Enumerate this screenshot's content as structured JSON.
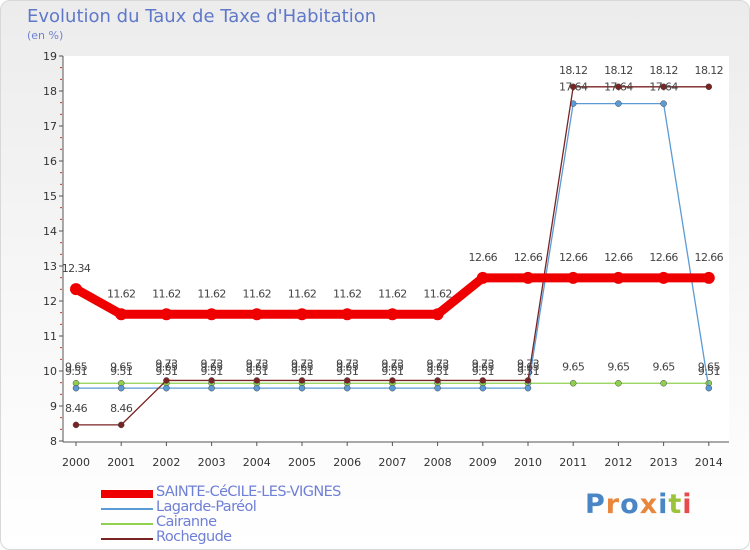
{
  "title": "Evolution du Taux de Taxe d'Habitation",
  "subtitle": "(en %)",
  "brand": {
    "text": "Proxiti",
    "colors": [
      "#4a86c5",
      "#e8863b",
      "#4a86c5",
      "#e8863b",
      "#4a86c5",
      "#9bc43b",
      "#e84b4b"
    ]
  },
  "chart_data": {
    "type": "line",
    "x": [
      "2000",
      "2001",
      "2002",
      "2003",
      "2004",
      "2005",
      "2006",
      "2007",
      "2008",
      "2009",
      "2010",
      "2011",
      "2012",
      "2013",
      "2014"
    ],
    "ylim": [
      8,
      19
    ],
    "yticks": [
      "8",
      "9",
      "10",
      "11",
      "12",
      "13",
      "14",
      "15",
      "16",
      "17",
      "18",
      "19"
    ],
    "grid": false,
    "legend_position": "bottom-left",
    "series": [
      {
        "name": "SAINTE-CéCILE-LES-VIGNES",
        "color": "#ee0000",
        "values": [
          12.34,
          11.62,
          11.62,
          11.62,
          11.62,
          11.62,
          11.62,
          11.62,
          11.62,
          12.66,
          12.66,
          12.66,
          12.66,
          12.66,
          12.66
        ],
        "labels": [
          "12.34",
          "11.62",
          "11.62",
          "11.62",
          "11.62",
          "11.62",
          "11.62",
          "11.62",
          "11.62",
          "12.66",
          "12.66",
          "12.66",
          "12.66",
          "12.66",
          "12.66"
        ]
      },
      {
        "name": "Lagarde-Paréol",
        "color": "#5b9bd5",
        "values": [
          9.51,
          9.51,
          9.51,
          9.51,
          9.51,
          9.51,
          9.51,
          9.51,
          9.51,
          9.51,
          9.51,
          17.64,
          17.64,
          17.64,
          9.51
        ],
        "labels": [
          "9.51",
          "9.51",
          "9.51",
          "9.51",
          "9.51",
          "9.51",
          "9.51",
          "9.51",
          "9.51",
          "9.51",
          "9.51",
          "17.64",
          "17.64",
          "17.64",
          "9.51"
        ]
      },
      {
        "name": "Cairanne",
        "color": "#8fd14f",
        "values": [
          9.65,
          9.65,
          9.65,
          9.65,
          9.65,
          9.65,
          9.65,
          9.65,
          9.65,
          9.65,
          9.65,
          9.65,
          9.65,
          9.65,
          9.65
        ],
        "labels": [
          "9.65",
          "9.65",
          "9.65",
          "9.65",
          "9.65",
          "9.65",
          "9.65",
          "9.65",
          "9.65",
          "9.65",
          "9.65",
          "9.65",
          "9.65",
          "9.65",
          "9.65"
        ]
      },
      {
        "name": "Rochegude",
        "color": "#7a2323",
        "values": [
          8.46,
          8.46,
          9.73,
          9.73,
          9.73,
          9.73,
          9.73,
          9.73,
          9.73,
          9.73,
          9.73,
          18.12,
          18.12,
          18.12,
          18.12
        ],
        "labels": [
          "8.46",
          "8.46",
          "9.73",
          "9.73",
          "9.73",
          "9.73",
          "9.73",
          "9.73",
          "9.73",
          "9.73",
          "9.73",
          "18.12",
          "18.12",
          "18.12",
          "18.12"
        ]
      }
    ]
  }
}
